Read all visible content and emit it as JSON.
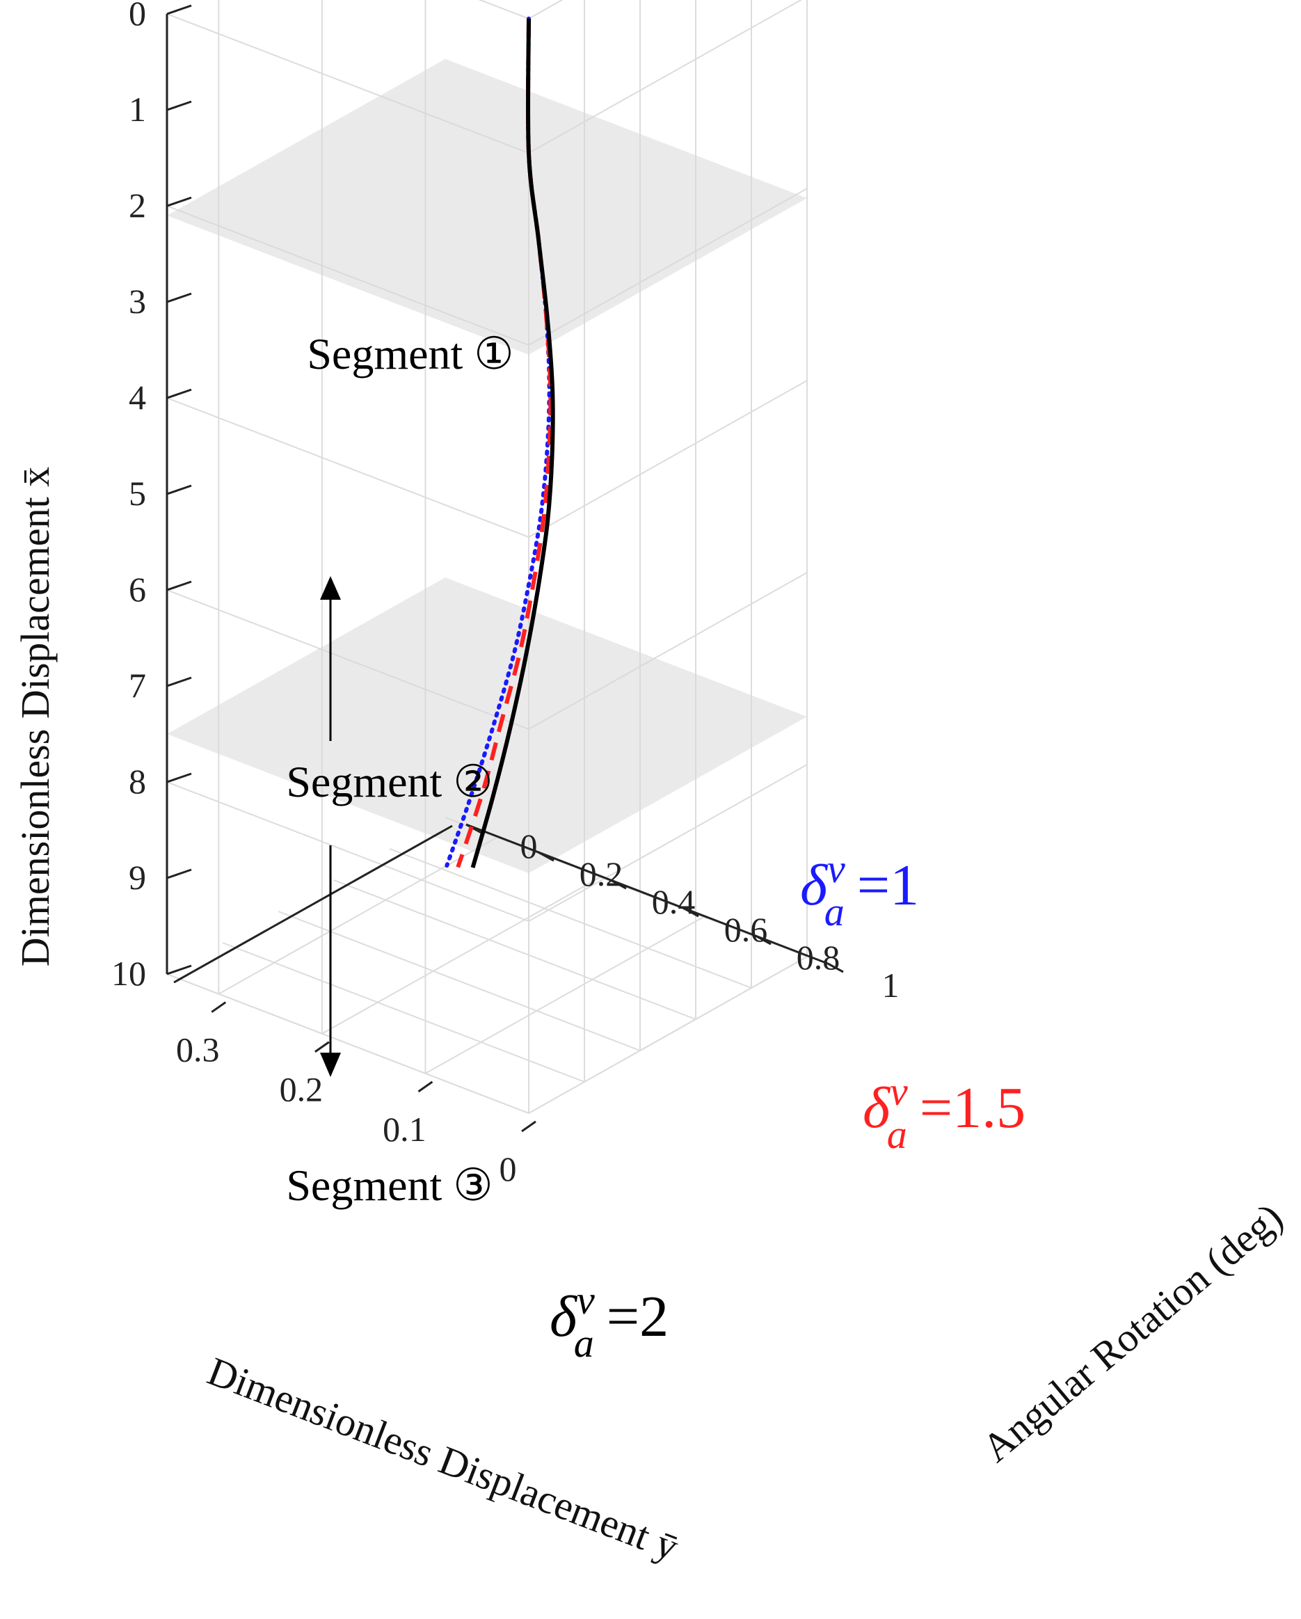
{
  "chart_data": {
    "type": "line",
    "projection": "3d",
    "axes": {
      "x_vertical": {
        "label": "Dimensionless Displacement x̄",
        "ticks": [
          "0",
          "1",
          "2",
          "3",
          "4",
          "5",
          "6",
          "7",
          "8",
          "9",
          "10"
        ],
        "range": [
          0,
          10
        ],
        "direction": "reversed"
      },
      "y": {
        "label": "Dimensionless Displacement ȳ",
        "ticks": [
          "0",
          "0.1",
          "0.2",
          "0.3"
        ],
        "range": [
          0,
          0.35
        ]
      },
      "rotation": {
        "label": "Angular Rotation (deg)",
        "ticks": [
          "0",
          "0.2",
          "0.4",
          "0.6",
          "0.8",
          "1"
        ],
        "range": [
          0,
          1
        ]
      }
    },
    "planes": [
      {
        "name": "segment-boundary-1",
        "x": 2.1
      },
      {
        "name": "segment-boundary-2",
        "x": 7.5
      }
    ],
    "segments": [
      {
        "label": "Segment ①"
      },
      {
        "label": "Segment ②"
      },
      {
        "label": "Segment ③"
      }
    ],
    "series": [
      {
        "name": "δav=1",
        "delta_value": "1",
        "color": "#1a1aff",
        "style": "dotted",
        "points": [
          [
            0,
            0,
            0
          ],
          [
            1,
            0.004,
            0.05
          ],
          [
            2,
            0.018,
            0.13
          ],
          [
            3,
            0.042,
            0.23
          ],
          [
            4,
            0.074,
            0.34
          ],
          [
            5,
            0.11,
            0.45
          ],
          [
            6,
            0.148,
            0.55
          ],
          [
            7,
            0.186,
            0.64
          ],
          [
            8,
            0.224,
            0.71
          ],
          [
            9,
            0.262,
            0.77
          ],
          [
            10,
            0.3,
            0.82
          ]
        ]
      },
      {
        "name": "δav=1.5",
        "delta_value": "1.5",
        "color": "#ff2020",
        "style": "dashed",
        "points": [
          [
            0,
            0,
            0
          ],
          [
            1,
            0.004,
            0.05
          ],
          [
            2,
            0.018,
            0.13
          ],
          [
            3,
            0.041,
            0.23
          ],
          [
            4,
            0.072,
            0.34
          ],
          [
            5,
            0.107,
            0.45
          ],
          [
            6,
            0.144,
            0.55
          ],
          [
            7,
            0.181,
            0.64
          ],
          [
            8,
            0.218,
            0.71
          ],
          [
            9,
            0.255,
            0.78
          ],
          [
            10,
            0.292,
            0.83
          ]
        ]
      },
      {
        "name": "δav=2",
        "delta_value": "2",
        "color": "#000000",
        "style": "solid",
        "points": [
          [
            0,
            0,
            0
          ],
          [
            1,
            0.004,
            0.05
          ],
          [
            2,
            0.017,
            0.13
          ],
          [
            3,
            0.039,
            0.23
          ],
          [
            4,
            0.069,
            0.34
          ],
          [
            5,
            0.103,
            0.45
          ],
          [
            6,
            0.139,
            0.55
          ],
          [
            7,
            0.175,
            0.64
          ],
          [
            8,
            0.211,
            0.72
          ],
          [
            9,
            0.247,
            0.79
          ],
          [
            10,
            0.283,
            0.85
          ]
        ]
      }
    ],
    "annotations": {
      "delta_symbol": "δ",
      "superscript": "v",
      "subscript": "a",
      "equals": "="
    },
    "grid": true,
    "legend": "inline labels"
  }
}
